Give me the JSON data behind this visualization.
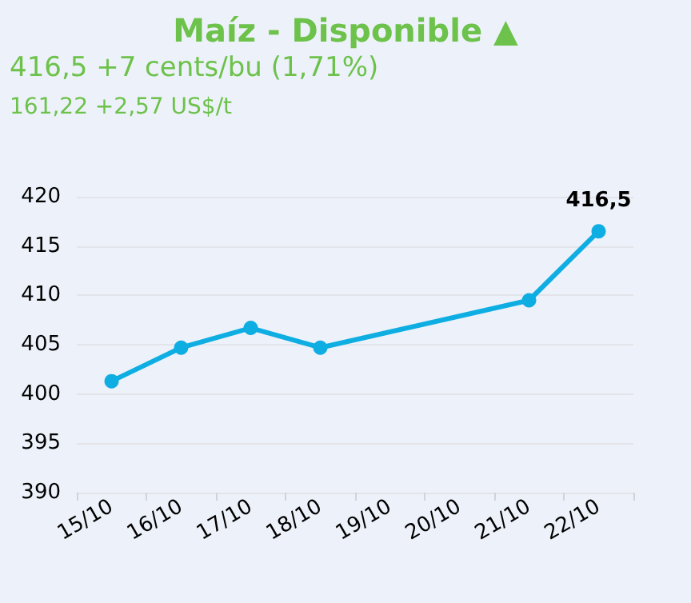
{
  "chart_data": {
    "type": "line",
    "title": "Maíz - Disponible ▲",
    "subtitle": "416,5 +7 cents/bu (1,71%)",
    "annotations": [
      "161,22 +2,57 US$/t"
    ],
    "categories": [
      "15/10",
      "16/10",
      "17/10",
      "18/10",
      "19/10",
      "20/10",
      "21/10",
      "22/10"
    ],
    "series": [
      {
        "color": "#0eaee3",
        "values": [
          401.3,
          404.7,
          406.7,
          404.7,
          null,
          null,
          409.5,
          416.5
        ],
        "value_labels": [
          null,
          null,
          null,
          null,
          null,
          null,
          null,
          "416,5"
        ]
      }
    ],
    "ylim": [
      390,
      420
    ],
    "yticks": [
      390,
      395,
      400,
      405,
      410,
      415,
      420
    ],
    "grid": "y",
    "marker": "circle",
    "line_style": "solid"
  }
}
